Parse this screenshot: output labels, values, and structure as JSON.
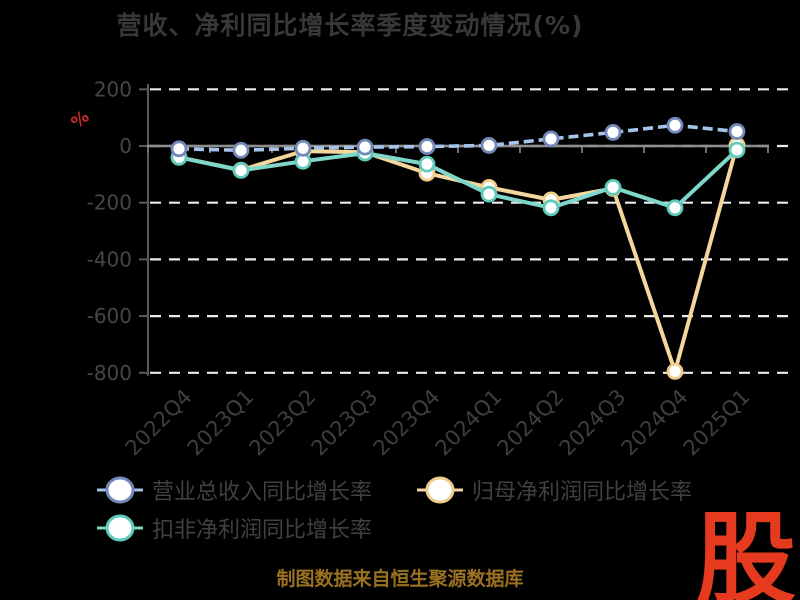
{
  "title": "营收、净利同比增长率季度变动情况(%)",
  "y_axis_unit_label": "%",
  "footer_note": "制图数据来自恒生聚源数据库",
  "watermark": "股",
  "colors": {
    "background": "#000000",
    "title_text": "#383838",
    "axis_text": "#464646",
    "grid_line": "#ececec",
    "axis_spine": "#5a5a5a",
    "zero_axis_line": "#8f8f8f",
    "unit_label_red": "#c62828",
    "footer_gold": "#9a7120",
    "watermark_red": "#e63a1e",
    "series_blue": "#a6c3ea",
    "series_yellow": "#f5d79d",
    "series_teal": "#7ed7ca"
  },
  "chart_data": {
    "type": "line",
    "title": "营收、净利同比增长率季度变动情况(%)",
    "xlabel": "",
    "ylabel": "%",
    "categories": [
      "2022Q4",
      "2023Q1",
      "2023Q2",
      "2023Q3",
      "2023Q4",
      "2024Q1",
      "2024Q2",
      "2024Q3",
      "2024Q4",
      "2025Q1"
    ],
    "series": [
      {
        "name": "营业总收入同比增长率",
        "style": "dashed",
        "line_color": "#a6c3ea",
        "marker_ring": "#7289ba",
        "values": [
          -10,
          -15,
          -8,
          -4,
          -2,
          2,
          25,
          48,
          73,
          51
        ]
      },
      {
        "name": "归母净利润同比增长率",
        "style": "solid",
        "line_color": "#f5d79d",
        "marker_ring": "#efcd8c",
        "values": [
          -40,
          -85,
          -18,
          -22,
          -96,
          -146,
          -190,
          -150,
          -795,
          3
        ]
      },
      {
        "name": "扣非净利润同比增长率",
        "style": "solid",
        "line_color": "#7ed7ca",
        "marker_ring": "#5fcabb",
        "values": [
          -40,
          -86,
          -54,
          -25,
          -64,
          -170,
          -218,
          -146,
          -218,
          -14
        ]
      }
    ],
    "yticks": [
      200,
      0,
      -200,
      -400,
      -600,
      -800
    ],
    "ylim": [
      -840,
      240
    ],
    "grid": "horizontal-dashed-white",
    "legend_position": "bottom-left",
    "marker": "circle-white-fill"
  }
}
